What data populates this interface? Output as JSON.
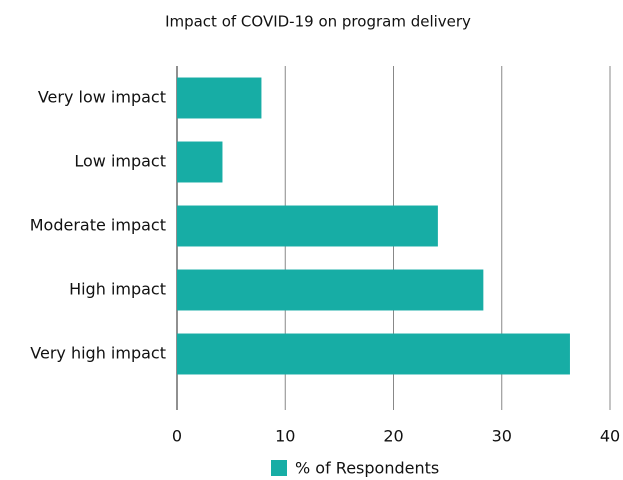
{
  "chart_data": {
    "type": "bar",
    "orientation": "horizontal",
    "title": "Impact of  COVID-19 on program delivery",
    "categories": [
      "Very low impact",
      "Low impact",
      "Moderate impact",
      "High impact",
      "Very high impact"
    ],
    "series": [
      {
        "name": "% of Respondents",
        "color": "#17ada5",
        "values": [
          7.8,
          4.2,
          24.1,
          28.3,
          36.3
        ]
      }
    ],
    "xlim": [
      0,
      40
    ],
    "xticks": [
      0,
      10,
      20,
      30,
      40
    ],
    "grid": true,
    "legend": "bottom"
  }
}
